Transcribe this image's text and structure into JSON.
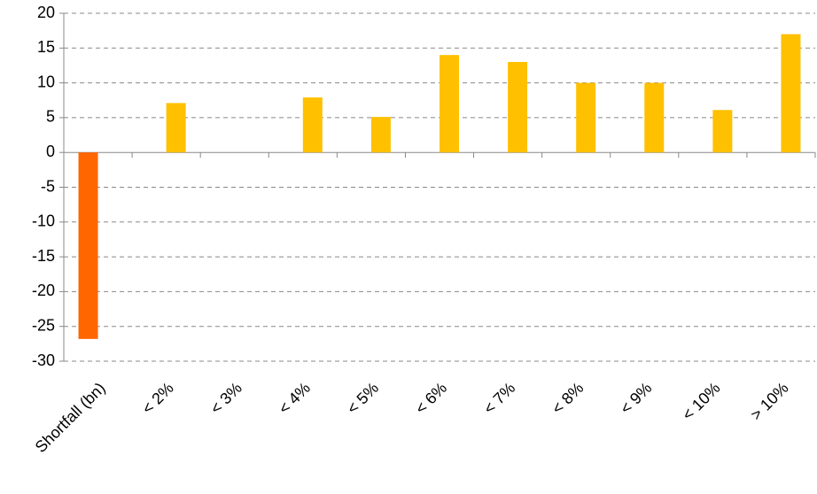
{
  "chart_data": {
    "type": "bar",
    "categories": [
      "Shortfall (bn)",
      "< 2%",
      "< 3%",
      "< 4%",
      "< 5%",
      "< 6%",
      "< 7%",
      "< 8%",
      "< 9%",
      "< 10%",
      "> 10%"
    ],
    "series": [
      {
        "color": "#ff6600",
        "values": [
          -26.8,
          null,
          null,
          null,
          null,
          null,
          null,
          null,
          null,
          null,
          null
        ]
      },
      {
        "color": "#ffc000",
        "values": [
          null,
          7.1,
          0,
          7.9,
          5.1,
          14,
          13,
          10,
          10,
          6.1,
          17
        ]
      }
    ],
    "ylim": [
      -30,
      20
    ],
    "yticks": [
      -30,
      -25,
      -20,
      -15,
      -10,
      -5,
      0,
      5,
      10,
      15,
      20
    ],
    "grid": true
  }
}
